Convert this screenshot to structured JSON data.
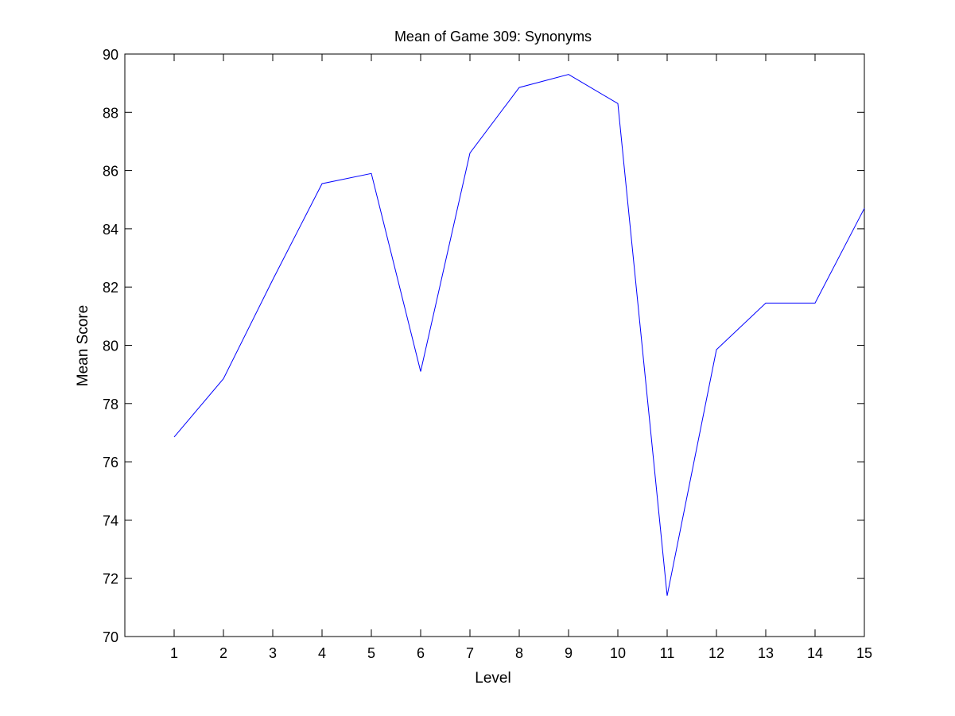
{
  "chart_data": {
    "type": "line",
    "title": "Mean of Game 309: Synonyms",
    "xlabel": "Level",
    "ylabel": "Mean Score",
    "xlim": [
      0,
      15
    ],
    "ylim": [
      70,
      90
    ],
    "xticks": [
      1,
      2,
      3,
      4,
      5,
      6,
      7,
      8,
      9,
      10,
      11,
      12,
      13,
      14,
      15
    ],
    "yticks": [
      70,
      72,
      74,
      76,
      78,
      80,
      82,
      84,
      86,
      88,
      90
    ],
    "grid": false,
    "legend": "none",
    "series": [
      {
        "color": "#0000ff",
        "x": [
          1,
          2,
          3,
          4,
          5,
          6,
          7,
          8,
          9,
          10,
          11,
          12,
          13,
          14,
          15
        ],
        "values": [
          76.85,
          78.85,
          82.25,
          85.55,
          85.9,
          79.1,
          86.6,
          88.85,
          89.3,
          88.3,
          71.4,
          79.85,
          81.45,
          81.45,
          84.7
        ]
      }
    ]
  }
}
